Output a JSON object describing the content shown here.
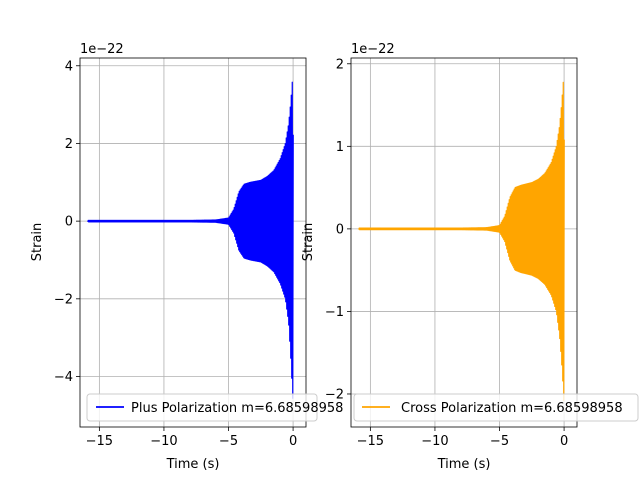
{
  "figure": {
    "background": "#ffffff"
  },
  "chart_data": [
    {
      "type": "line",
      "xlabel": "Time (s)",
      "ylabel": "Strain",
      "offset_text": "1e−22",
      "xlim": [
        -16.5,
        1.0
      ],
      "ylim": [
        -5.3,
        4.2
      ],
      "xticks": [
        -15,
        -10,
        -5,
        0
      ],
      "xtick_labels": [
        "−15",
        "−10",
        "−5",
        "0"
      ],
      "yticks": [
        -4,
        -2,
        0,
        2,
        4
      ],
      "ytick_labels": [
        "−4",
        "−2",
        "0",
        "2",
        "4"
      ],
      "grid": true,
      "legend_placement": "lower-center",
      "series": [
        {
          "name": "Plus Polarization m=6.68598958",
          "color": "#0000ff",
          "x_range": [
            -15.9,
            0.05
          ],
          "envelope_upper": [
            [
              -15.9,
              0.02
            ],
            [
              -8,
              0.02
            ],
            [
              -6,
              0.03
            ],
            [
              -5,
              0.08
            ],
            [
              -4.6,
              0.3
            ],
            [
              -4.2,
              0.75
            ],
            [
              -3.8,
              0.95
            ],
            [
              -3.3,
              1.0
            ],
            [
              -2.5,
              1.05
            ],
            [
              -2,
              1.15
            ],
            [
              -1.5,
              1.3
            ],
            [
              -1,
              1.6
            ],
            [
              -0.6,
              2.0
            ],
            [
              -0.35,
              2.5
            ],
            [
              -0.2,
              3.0
            ],
            [
              -0.08,
              3.5
            ],
            [
              -0.02,
              3.8
            ],
            [
              0,
              3.8
            ],
            [
              0.03,
              0.05
            ],
            [
              0.05,
              0
            ]
          ],
          "envelope_lower": [
            [
              -15.9,
              -0.02
            ],
            [
              -8,
              -0.02
            ],
            [
              -6,
              -0.03
            ],
            [
              -5,
              -0.08
            ],
            [
              -4.6,
              -0.3
            ],
            [
              -4.2,
              -0.75
            ],
            [
              -3.8,
              -0.95
            ],
            [
              -3.3,
              -1.0
            ],
            [
              -2.5,
              -1.05
            ],
            [
              -2,
              -1.15
            ],
            [
              -1.5,
              -1.3
            ],
            [
              -1,
              -1.6
            ],
            [
              -0.6,
              -2.0
            ],
            [
              -0.35,
              -2.6
            ],
            [
              -0.2,
              -3.4
            ],
            [
              -0.08,
              -4.2
            ],
            [
              -0.02,
              -4.6
            ],
            [
              0,
              -4.6
            ],
            [
              0.03,
              -0.05
            ],
            [
              0.05,
              0
            ]
          ]
        }
      ]
    },
    {
      "type": "line",
      "xlabel": "Time (s)",
      "ylabel": "Strain",
      "offset_text": "1e−22",
      "xlim": [
        -16.5,
        1.0
      ],
      "ylim": [
        -2.4,
        2.07
      ],
      "xticks": [
        -15,
        -10,
        -5,
        0
      ],
      "xtick_labels": [
        "−15",
        "−10",
        "−5",
        "0"
      ],
      "yticks": [
        -2,
        -1,
        0,
        1,
        2
      ],
      "ytick_labels": [
        "−2",
        "−1",
        "0",
        "1",
        "2"
      ],
      "grid": true,
      "legend_placement": "lower-center",
      "series": [
        {
          "name": "Cross Polarization m=6.68598958",
          "color": "#ffa500",
          "x_range": [
            -15.9,
            0.05
          ],
          "envelope_upper": [
            [
              -15.9,
              0.01
            ],
            [
              -8,
              0.01
            ],
            [
              -6,
              0.015
            ],
            [
              -5,
              0.04
            ],
            [
              -4.6,
              0.15
            ],
            [
              -4.2,
              0.38
            ],
            [
              -3.8,
              0.5
            ],
            [
              -3.3,
              0.53
            ],
            [
              -2.5,
              0.56
            ],
            [
              -2,
              0.6
            ],
            [
              -1.5,
              0.67
            ],
            [
              -1,
              0.8
            ],
            [
              -0.6,
              1.0
            ],
            [
              -0.35,
              1.25
            ],
            [
              -0.2,
              1.5
            ],
            [
              -0.08,
              1.75
            ],
            [
              -0.02,
              1.85
            ],
            [
              0,
              1.85
            ],
            [
              0.03,
              0.02
            ],
            [
              0.05,
              0
            ]
          ],
          "envelope_lower": [
            [
              -15.9,
              -0.01
            ],
            [
              -8,
              -0.01
            ],
            [
              -6,
              -0.015
            ],
            [
              -5,
              -0.04
            ],
            [
              -4.6,
              -0.15
            ],
            [
              -4.2,
              -0.38
            ],
            [
              -3.8,
              -0.5
            ],
            [
              -3.3,
              -0.53
            ],
            [
              -2.5,
              -0.56
            ],
            [
              -2,
              -0.6
            ],
            [
              -1.5,
              -0.67
            ],
            [
              -1,
              -0.8
            ],
            [
              -0.6,
              -1.0
            ],
            [
              -0.35,
              -1.3
            ],
            [
              -0.2,
              -1.6
            ],
            [
              -0.08,
              -1.9
            ],
            [
              -0.02,
              -2.1
            ],
            [
              0,
              -2.1
            ],
            [
              0.03,
              -0.02
            ],
            [
              0.05,
              0
            ]
          ]
        }
      ]
    }
  ]
}
